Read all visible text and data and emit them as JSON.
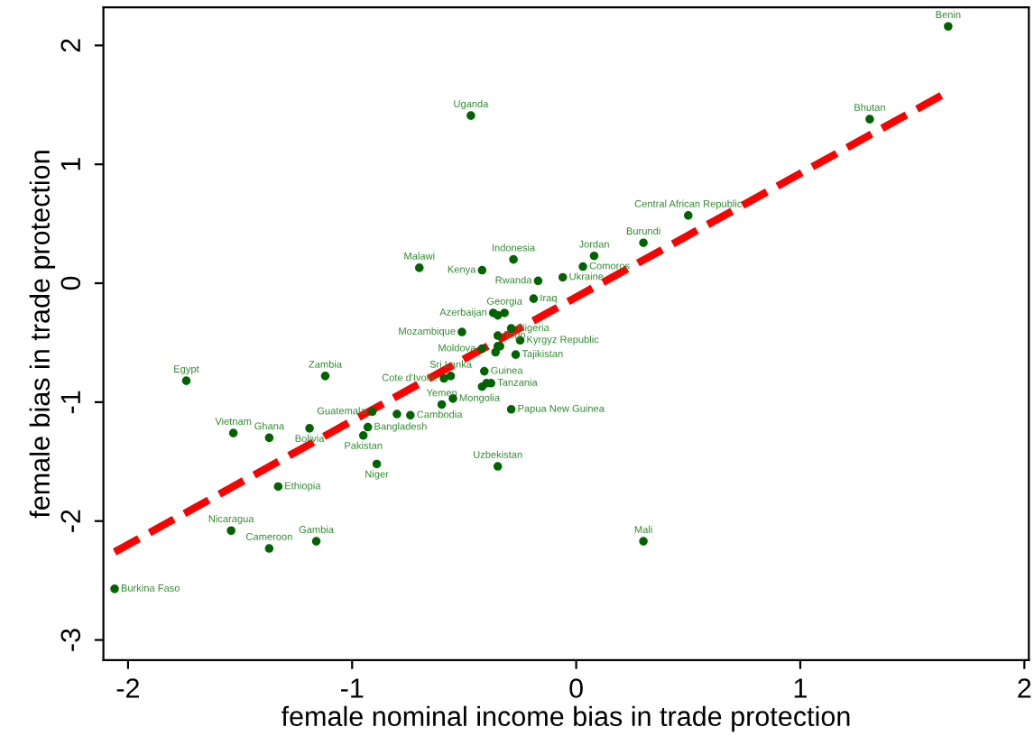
{
  "chart_data": {
    "type": "scatter",
    "xlabel": "female nominal income bias in trade protection",
    "ylabel": "female bias in trade protection",
    "xlim": [
      -2.11,
      2.02
    ],
    "ylim": [
      -3.17,
      2.32
    ],
    "xticks": [
      -2,
      -1,
      0,
      1,
      2
    ],
    "yticks": [
      -3,
      -2,
      -1,
      0,
      1,
      2
    ],
    "grid": false,
    "marker": "circle",
    "series": [
      {
        "type": "scatter",
        "color": "#006400",
        "x": [
          -0.47,
          -0.7,
          -0.42,
          -0.28,
          -0.17,
          -0.19,
          -0.32,
          -0.37,
          -0.35,
          -0.51,
          -0.35,
          -0.29,
          -0.42,
          -0.34,
          -0.35,
          -0.36,
          -0.25,
          -0.27,
          -0.41,
          -0.4,
          -0.38,
          -0.42,
          -0.56,
          -0.59,
          -0.55,
          -0.6,
          -0.29,
          -0.74,
          -0.8,
          -0.91,
          -0.93,
          -0.95,
          -0.89,
          -0.35,
          -1.19,
          -1.37,
          -1.53,
          -1.33,
          -1.74,
          -1.12,
          -1.54,
          -1.37,
          -1.16,
          -2.06,
          0.3,
          1.66,
          1.31,
          0.5,
          0.3,
          0.08,
          0.03,
          -0.06
        ],
        "values": [
          1.41,
          0.13,
          0.11,
          0.2,
          0.02,
          -0.13,
          -0.25,
          -0.25,
          -0.27,
          -0.41,
          -0.44,
          -0.38,
          -0.55,
          -0.53,
          -0.53,
          -0.58,
          -0.48,
          -0.6,
          -0.74,
          -0.84,
          -0.84,
          -0.87,
          -0.78,
          -0.8,
          -0.97,
          -1.02,
          -1.06,
          -1.11,
          -1.1,
          -1.08,
          -1.21,
          -1.28,
          -1.52,
          -1.54,
          -1.22,
          -1.3,
          -1.26,
          -1.71,
          -0.82,
          -0.78,
          -2.08,
          -2.23,
          -2.17,
          -2.57,
          -2.17,
          2.16,
          1.38,
          0.57,
          0.34,
          0.23,
          0.14,
          0.05
        ]
      },
      {
        "type": "line",
        "color": "#ff0000",
        "line_style": "dashed",
        "marker": "none",
        "x": [
          -2.06,
          1.66
        ],
        "values": [
          -2.26,
          1.61
        ]
      }
    ],
    "annotations": [
      {
        "text": "Uganda",
        "x": -0.47,
        "y": 1.41
      },
      {
        "text": "Malawi",
        "x": -0.7,
        "y": 0.13
      },
      {
        "text": "Kenya",
        "x": -0.42,
        "y": 0.11
      },
      {
        "text": "Indonesia",
        "x": -0.28,
        "y": 0.2
      },
      {
        "text": "Rwanda",
        "x": -0.17,
        "y": 0.02
      },
      {
        "text": "Iraq",
        "x": -0.19,
        "y": -0.13
      },
      {
        "text": "Georgia",
        "x": -0.32,
        "y": -0.25
      },
      {
        "text": "Azerbaijan",
        "x": -0.37,
        "y": -0.25
      },
      {
        "text": "Mozambique",
        "x": -0.51,
        "y": -0.41
      },
      {
        "text": "Togo",
        "x": -0.35,
        "y": -0.44
      },
      {
        "text": "Nigeria",
        "x": -0.29,
        "y": -0.38
      },
      {
        "text": "Moldova",
        "x": -0.42,
        "y": -0.55
      },
      {
        "text": "Kyrgyz Republic",
        "x": -0.25,
        "y": -0.48
      },
      {
        "text": "Tajikistan",
        "x": -0.27,
        "y": -0.6
      },
      {
        "text": "Guinea",
        "x": -0.41,
        "y": -0.74
      },
      {
        "text": "Tanzania",
        "x": -0.38,
        "y": -0.84
      },
      {
        "text": "Sri Lanka",
        "x": -0.56,
        "y": -0.78
      },
      {
        "text": "Cote d'Ivoire",
        "x": -0.59,
        "y": -0.8
      },
      {
        "text": "Mongolia",
        "x": -0.55,
        "y": -0.97
      },
      {
        "text": "Yemen",
        "x": -0.6,
        "y": -1.02
      },
      {
        "text": "Papua New Guinea",
        "x": -0.29,
        "y": -1.06
      },
      {
        "text": "Cambodia",
        "x": -0.74,
        "y": -1.11
      },
      {
        "text": "Guatemala",
        "x": -0.91,
        "y": -1.08
      },
      {
        "text": "Bangladesh",
        "x": -0.93,
        "y": -1.21
      },
      {
        "text": "Pakistan",
        "x": -0.95,
        "y": -1.28
      },
      {
        "text": "Niger",
        "x": -0.89,
        "y": -1.52
      },
      {
        "text": "Uzbekistan",
        "x": -0.35,
        "y": -1.54
      },
      {
        "text": "Bolivia",
        "x": -1.19,
        "y": -1.22
      },
      {
        "text": "Ghana",
        "x": -1.37,
        "y": -1.3
      },
      {
        "text": "Vietnam",
        "x": -1.53,
        "y": -1.26
      },
      {
        "text": "Ethiopia",
        "x": -1.33,
        "y": -1.71
      },
      {
        "text": "Egypt",
        "x": -1.74,
        "y": -0.82
      },
      {
        "text": "Zambia",
        "x": -1.12,
        "y": -0.78
      },
      {
        "text": "Nicaragua",
        "x": -1.54,
        "y": -2.08
      },
      {
        "text": "Cameroon",
        "x": -1.37,
        "y": -2.23
      },
      {
        "text": "Gambia",
        "x": -1.16,
        "y": -2.17
      },
      {
        "text": "Burkina Faso",
        "x": -2.06,
        "y": -2.57
      },
      {
        "text": "Mali",
        "x": 0.3,
        "y": -2.17
      },
      {
        "text": "Benin",
        "x": 1.66,
        "y": 2.16
      },
      {
        "text": "Bhutan",
        "x": 1.31,
        "y": 1.38
      },
      {
        "text": "Central African Republic",
        "x": 0.5,
        "y": 0.57
      },
      {
        "text": "Burundi",
        "x": 0.3,
        "y": 0.34
      },
      {
        "text": "Jordan",
        "x": 0.08,
        "y": 0.23
      },
      {
        "text": "Comoros",
        "x": 0.03,
        "y": 0.14
      },
      {
        "text": "Ukraine",
        "x": -0.06,
        "y": 0.05
      }
    ]
  }
}
